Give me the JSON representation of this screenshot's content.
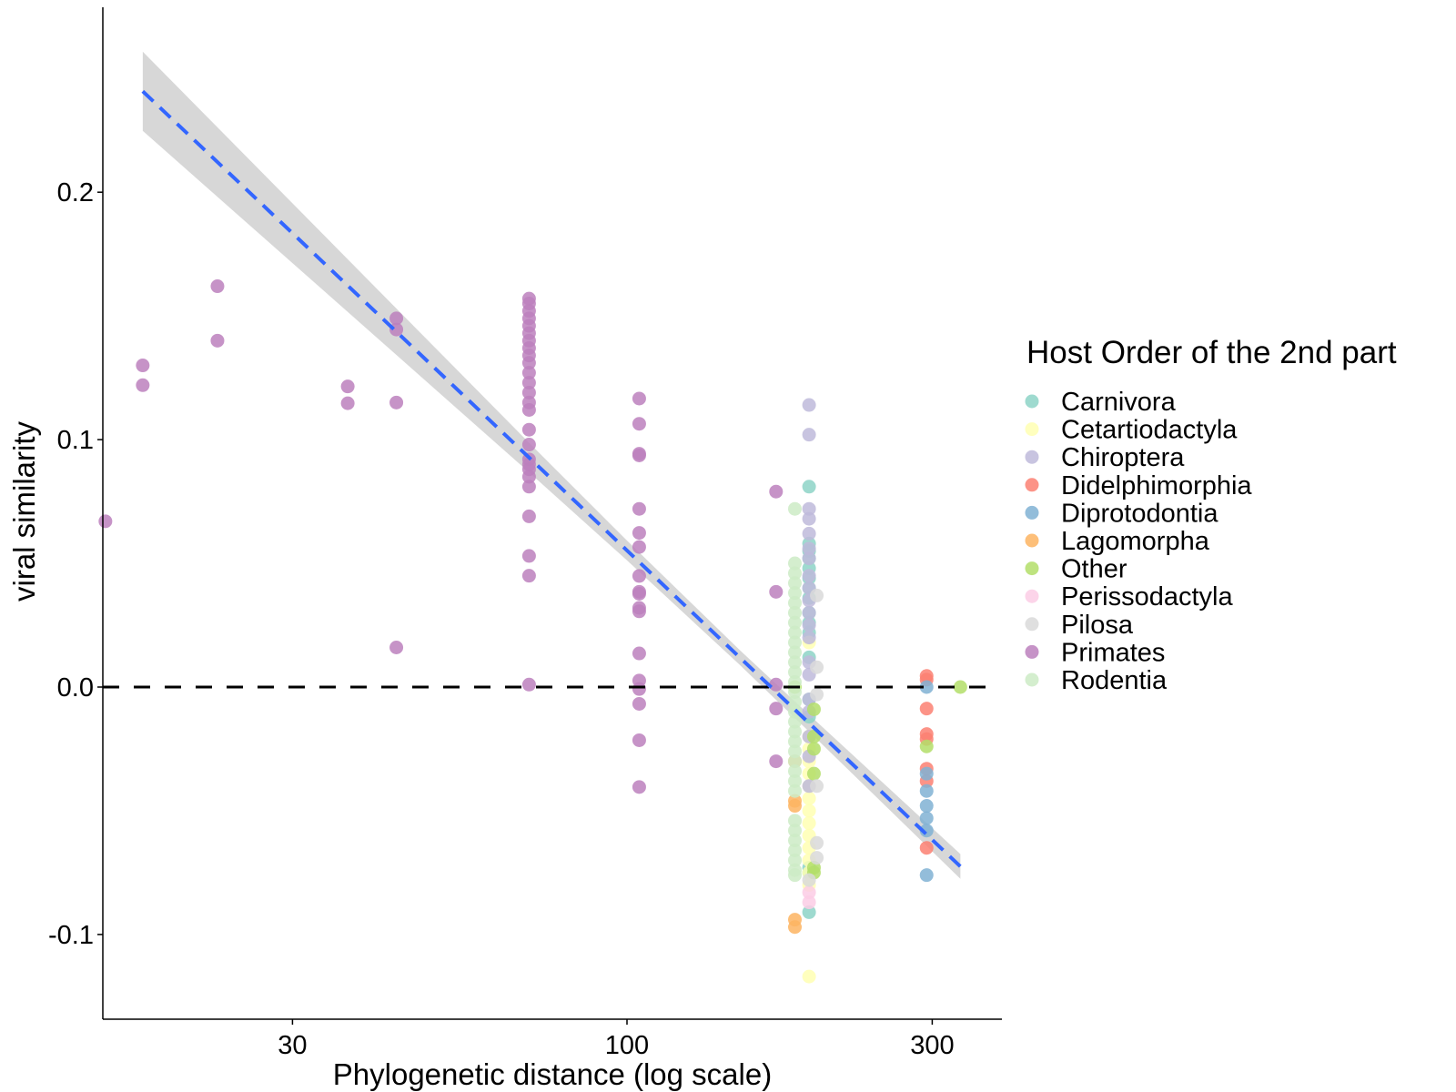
{
  "chart_data": {
    "type": "scatter",
    "xlabel": "Phylogenetic distance (log scale)",
    "ylabel": "viral similarity",
    "x_scale": "log",
    "xlim": [
      15,
      385
    ],
    "ylim": [
      -0.133,
      0.276
    ],
    "x_ticks": [
      {
        "value": 30,
        "label": "30"
      },
      {
        "value": 100,
        "label": "100"
      },
      {
        "value": 300,
        "label": "300"
      }
    ],
    "y_ticks": [
      {
        "value": 0.2,
        "label": "0.2"
      },
      {
        "value": 0.1,
        "label": "0.1"
      },
      {
        "value": 0.0,
        "label": "0.0"
      },
      {
        "value": -0.1,
        "label": "-0.1"
      }
    ],
    "grid": false,
    "reference_line": {
      "y": 0,
      "style": "dashed",
      "color": "#000000"
    },
    "regression": {
      "style": "dashed",
      "color": "#3366FF",
      "ribbon_color": "#BDBDBD",
      "x": [
        17.5,
        40,
        70,
        100,
        150,
        200,
        332
      ],
      "fit": [
        0.2408,
        0.1528,
        0.0932,
        0.0552,
        0.012,
        -0.0186,
        -0.0725
      ],
      "lower": [
        0.2248,
        0.1428,
        0.0872,
        0.0512,
        0.009,
        -0.0221,
        -0.0775
      ],
      "upper": [
        0.2568,
        0.1628,
        0.0992,
        0.0592,
        0.015,
        -0.0151,
        -0.0675
      ]
    },
    "legend": {
      "title": "Host Order of the 2nd part",
      "placement": "right"
    },
    "series": [
      {
        "name": "Carnivora",
        "color": "#8DD3C7",
        "points": [
          [
            192.6,
            0.081
          ],
          [
            192.6,
            0.058
          ],
          [
            192.6,
            0.055
          ],
          [
            192.6,
            0.052
          ],
          [
            192.6,
            0.048
          ],
          [
            192.6,
            0.044
          ],
          [
            192.6,
            0.04
          ],
          [
            192.6,
            0.036
          ],
          [
            192.6,
            0.03
          ],
          [
            192.6,
            0.026
          ],
          [
            192.6,
            0.022
          ],
          [
            192.6,
            0.012
          ],
          [
            192.6,
            -0.005
          ],
          [
            192.6,
            -0.012
          ],
          [
            192.6,
            -0.073
          ],
          [
            192.6,
            -0.075
          ],
          [
            192.6,
            -0.091
          ]
        ]
      },
      {
        "name": "Cetartiodactyla",
        "color": "#FFFFB3",
        "points": [
          [
            192.6,
            0.018
          ],
          [
            192.6,
            -0.02
          ],
          [
            192.6,
            -0.025
          ],
          [
            192.6,
            -0.03
          ],
          [
            192.6,
            -0.035
          ],
          [
            192.6,
            -0.04
          ],
          [
            192.6,
            -0.045
          ],
          [
            192.6,
            -0.05
          ],
          [
            192.6,
            -0.055
          ],
          [
            192.6,
            -0.06
          ],
          [
            192.6,
            -0.065
          ],
          [
            192.6,
            -0.07
          ],
          [
            192.6,
            -0.075
          ],
          [
            192.6,
            -0.08
          ],
          [
            192.6,
            -0.117
          ]
        ]
      },
      {
        "name": "Chiroptera",
        "color": "#BEBADA",
        "points": [
          [
            192.6,
            0.114
          ],
          [
            192.6,
            0.102
          ],
          [
            192.6,
            0.072
          ],
          [
            192.6,
            0.068
          ],
          [
            192.6,
            0.062
          ],
          [
            192.6,
            0.056
          ],
          [
            192.6,
            0.052
          ],
          [
            192.6,
            0.045
          ],
          [
            192.6,
            0.04
          ],
          [
            192.6,
            0.035
          ],
          [
            192.6,
            0.03
          ],
          [
            192.6,
            0.025
          ],
          [
            192.6,
            0.02
          ],
          [
            192.6,
            0.01
          ],
          [
            192.6,
            0.005
          ],
          [
            192.6,
            -0.005
          ],
          [
            192.6,
            -0.01
          ],
          [
            192.6,
            -0.02
          ],
          [
            192.6,
            -0.028
          ],
          [
            192.6,
            -0.04
          ]
        ]
      },
      {
        "name": "Didelphimorphia",
        "color": "#FB8072",
        "points": [
          [
            294,
            0.0045
          ],
          [
            294,
            0.003
          ],
          [
            294,
            -0.0087
          ],
          [
            294,
            -0.019
          ],
          [
            294,
            -0.021
          ],
          [
            294,
            -0.033
          ],
          [
            294,
            -0.038
          ],
          [
            294,
            -0.065
          ]
        ]
      },
      {
        "name": "Diprotodontia",
        "color": "#80B1D3",
        "points": [
          [
            294,
            0.0
          ],
          [
            294,
            -0.035
          ],
          [
            294,
            -0.042
          ],
          [
            294,
            -0.048
          ],
          [
            294,
            -0.053
          ],
          [
            294,
            -0.058
          ],
          [
            294,
            -0.076
          ]
        ]
      },
      {
        "name": "Lagomorpha",
        "color": "#FDB462",
        "points": [
          [
            183,
            -0.03
          ],
          [
            183,
            -0.046
          ],
          [
            183,
            -0.048
          ],
          [
            183,
            -0.094
          ],
          [
            183,
            -0.097
          ]
        ]
      },
      {
        "name": "Other",
        "color": "#B3DE69",
        "points": [
          [
            183,
            0.0
          ],
          [
            196,
            -0.009
          ],
          [
            196,
            -0.02
          ],
          [
            196,
            -0.025
          ],
          [
            196,
            -0.035
          ],
          [
            196,
            -0.073
          ],
          [
            196,
            -0.075
          ],
          [
            294,
            -0.024
          ],
          [
            332,
            0.0
          ]
        ]
      },
      {
        "name": "Perissodactyla",
        "color": "#FCCDE5",
        "points": [
          [
            192.6,
            -0.083
          ],
          [
            192.6,
            -0.087
          ]
        ]
      },
      {
        "name": "Pilosa",
        "color": "#D9D9D9",
        "points": [
          [
            198,
            0.037
          ],
          [
            198,
            0.008
          ],
          [
            198,
            -0.003
          ],
          [
            198,
            -0.04
          ],
          [
            198,
            -0.063
          ],
          [
            198,
            -0.069
          ],
          [
            192.6,
            -0.078
          ]
        ]
      },
      {
        "name": "Primates",
        "color": "#BC80BD",
        "points": [
          [
            15.3,
            0.067
          ],
          [
            17.5,
            0.13
          ],
          [
            17.5,
            0.122
          ],
          [
            22.9,
            0.162
          ],
          [
            22.9,
            0.14
          ],
          [
            36.6,
            0.1215
          ],
          [
            36.6,
            0.1147
          ],
          [
            43.6,
            0.149
          ],
          [
            43.6,
            0.1445
          ],
          [
            43.6,
            0.115
          ],
          [
            43.6,
            0.016
          ],
          [
            70.3,
            0.157
          ],
          [
            70.3,
            0.155
          ],
          [
            70.3,
            0.152
          ],
          [
            70.3,
            0.149
          ],
          [
            70.3,
            0.146
          ],
          [
            70.3,
            0.143
          ],
          [
            70.3,
            0.14
          ],
          [
            70.3,
            0.137
          ],
          [
            70.3,
            0.134
          ],
          [
            70.3,
            0.131
          ],
          [
            70.3,
            0.127
          ],
          [
            70.3,
            0.123
          ],
          [
            70.3,
            0.119
          ],
          [
            70.3,
            0.115
          ],
          [
            70.3,
            0.112
          ],
          [
            70.3,
            0.104
          ],
          [
            70.3,
            0.098
          ],
          [
            70.3,
            0.092
          ],
          [
            70.3,
            0.09
          ],
          [
            70.3,
            0.088
          ],
          [
            70.3,
            0.085
          ],
          [
            70.3,
            0.081
          ],
          [
            70.3,
            0.069
          ],
          [
            70.3,
            0.053
          ],
          [
            70.3,
            0.045
          ],
          [
            70.3,
            0.001
          ],
          [
            104.5,
            0.1166
          ],
          [
            104.5,
            0.1064
          ],
          [
            104.5,
            0.0943
          ],
          [
            104.5,
            0.0936
          ],
          [
            104.5,
            0.072
          ],
          [
            104.5,
            0.0623
          ],
          [
            104.5,
            0.0566
          ],
          [
            104.5,
            0.0449
          ],
          [
            104.5,
            0.0385
          ],
          [
            104.5,
            0.0377
          ],
          [
            104.5,
            0.032
          ],
          [
            104.5,
            0.0306
          ],
          [
            104.5,
            0.0136
          ],
          [
            104.5,
            0.0026
          ],
          [
            104.5,
            -0.0008
          ],
          [
            104.5,
            -0.0068
          ],
          [
            104.5,
            -0.0215
          ],
          [
            104.5,
            -0.0404
          ],
          [
            171,
            0.079
          ],
          [
            171,
            0.0385
          ],
          [
            171,
            0.001
          ],
          [
            171,
            -0.0087
          ],
          [
            171,
            -0.03
          ]
        ]
      },
      {
        "name": "Rodentia",
        "color": "#CCEBC5",
        "points": [
          [
            183,
            0.072
          ],
          [
            183,
            0.05
          ],
          [
            183,
            0.046
          ],
          [
            183,
            0.042
          ],
          [
            183,
            0.038
          ],
          [
            183,
            0.034
          ],
          [
            183,
            0.03
          ],
          [
            183,
            0.026
          ],
          [
            183,
            0.022
          ],
          [
            183,
            0.018
          ],
          [
            183,
            0.014
          ],
          [
            183,
            0.01
          ],
          [
            183,
            0.006
          ],
          [
            183,
            0.002
          ],
          [
            183,
            -0.002
          ],
          [
            183,
            -0.006
          ],
          [
            183,
            -0.01
          ],
          [
            183,
            -0.014
          ],
          [
            183,
            -0.018
          ],
          [
            183,
            -0.022
          ],
          [
            183,
            -0.026
          ],
          [
            183,
            -0.03
          ],
          [
            183,
            -0.034
          ],
          [
            183,
            -0.038
          ],
          [
            183,
            -0.042
          ],
          [
            183,
            -0.054
          ],
          [
            183,
            -0.058
          ],
          [
            183,
            -0.062
          ],
          [
            183,
            -0.066
          ],
          [
            183,
            -0.07
          ],
          [
            183,
            -0.074
          ],
          [
            183,
            -0.076
          ]
        ]
      }
    ]
  }
}
